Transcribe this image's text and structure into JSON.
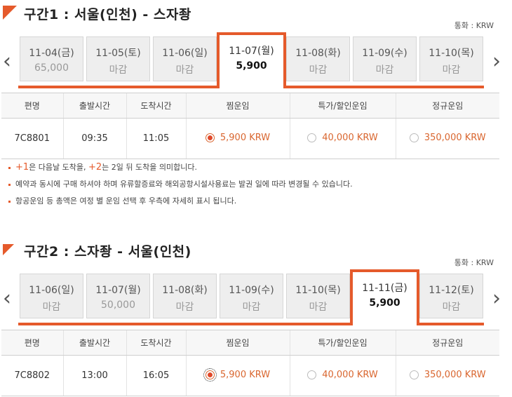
{
  "currency_label": "통화 : KRW",
  "table_headers": [
    "편명",
    "출발시간",
    "도착시간",
    "찜운임",
    "특가/할인운임",
    "정규운임"
  ],
  "segment1": {
    "title": "구간1 : 서울(인천) - 스자좡",
    "dates": [
      {
        "date": "11-04(금)",
        "price": "65,000",
        "active": false
      },
      {
        "date": "11-05(토)",
        "price": "마감",
        "active": false
      },
      {
        "date": "11-06(일)",
        "price": "마감",
        "active": false
      },
      {
        "date": "11-07(월)",
        "price": "5,900",
        "active": true
      },
      {
        "date": "11-08(화)",
        "price": "마감",
        "active": false
      },
      {
        "date": "11-09(수)",
        "price": "마감",
        "active": false
      },
      {
        "date": "11-10(목)",
        "price": "마감",
        "active": false
      }
    ],
    "flight": {
      "number": "7C8801",
      "departure": "09:35",
      "arrival": "11:05",
      "fare_jjim": "5,900 KRW",
      "fare_special": "40,000 KRW",
      "fare_regular": "350,000 KRW"
    }
  },
  "notes": {
    "n1_hl1": "+1",
    "n1_t1": "은 다음날 도착을, ",
    "n1_hl2": "+2",
    "n1_t2": "는 2일 뒤 도착을 의미합니다.",
    "n2": "예약과 동시에 구매 하셔야 하며 유류할증료와 해외공항시설사용료는 발권 일에 따라 변경될 수 있습니다.",
    "n3": "항공운임 등 총액은 여정 별 운임 선택 후 우측에 자세히 표시 됩니다."
  },
  "segment2": {
    "title": "구간2 : 스자좡 - 서울(인천)",
    "dates": [
      {
        "date": "11-06(일)",
        "price": "마감",
        "active": false
      },
      {
        "date": "11-07(월)",
        "price": "50,000",
        "active": false
      },
      {
        "date": "11-08(화)",
        "price": "마감",
        "active": false
      },
      {
        "date": "11-09(수)",
        "price": "마감",
        "active": false
      },
      {
        "date": "11-10(목)",
        "price": "마감",
        "active": false
      },
      {
        "date": "11-11(금)",
        "price": "5,900",
        "active": true
      },
      {
        "date": "11-12(토)",
        "price": "마감",
        "active": false
      }
    ],
    "flight": {
      "number": "7C8802",
      "departure": "13:00",
      "arrival": "16:05",
      "fare_jjim": "5,900 KRW",
      "fare_special": "40,000 KRW",
      "fare_regular": "350,000 KRW"
    }
  },
  "icons": {
    "prev": "chevron-left-icon",
    "next": "chevron-right-icon",
    "corner": "corner-flag-icon"
  },
  "colors": {
    "accent": "#e55a2b",
    "fare_text": "#d9662f"
  }
}
